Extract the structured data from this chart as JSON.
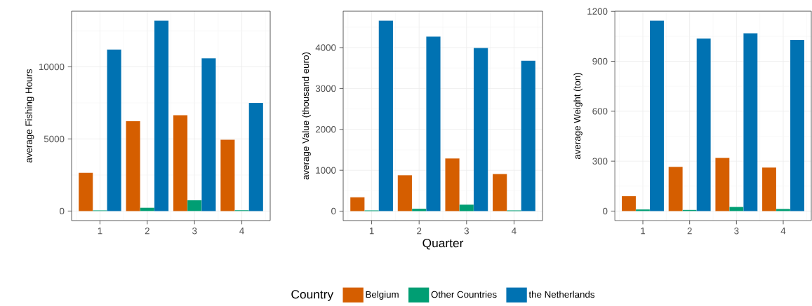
{
  "chart_data": [
    {
      "type": "bar",
      "categories": [
        "1",
        "2",
        "3",
        "4"
      ],
      "ylabel": "average Fishing Hours",
      "ylim": [
        -660,
        13860
      ],
      "yticks": [
        0,
        5000,
        10000
      ],
      "grid": true,
      "series": [
        {
          "color": "#d55e00",
          "values": [
            2650,
            6230,
            6650,
            4950
          ]
        },
        {
          "color": "#009e73",
          "values": [
            50,
            230,
            750,
            60
          ]
        },
        {
          "color": "#0072b2",
          "values": [
            11200,
            13200,
            10600,
            7500
          ]
        }
      ]
    },
    {
      "type": "bar",
      "categories": [
        "1",
        "2",
        "3",
        "4"
      ],
      "xlabel": "Quarter",
      "ylabel": "average Value (thousand euro)",
      "ylim": [
        -230,
        4890
      ],
      "yticks": [
        0,
        1000,
        2000,
        3000,
        4000
      ],
      "grid": true,
      "legend": "bottom",
      "legend_title": "Country",
      "series": [
        {
          "name": "Belgium",
          "color": "#d55e00",
          "values": [
            340,
            880,
            1290,
            910
          ]
        },
        {
          "name": "Other Countries",
          "color": "#009e73",
          "values": [
            20,
            60,
            160,
            20
          ]
        },
        {
          "name": "the Netherlands",
          "color": "#0072b2",
          "values": [
            4660,
            4270,
            3990,
            3680
          ]
        }
      ]
    },
    {
      "type": "bar",
      "categories": [
        "1",
        "2",
        "3",
        "4"
      ],
      "ylabel": "average Weight (ton)",
      "ylim": [
        -57,
        1201
      ],
      "yticks": [
        0,
        300,
        600,
        900,
        1200
      ],
      "grid": true,
      "series": [
        {
          "color": "#d55e00",
          "values": [
            90,
            266,
            320,
            262
          ]
        },
        {
          "color": "#009e73",
          "values": [
            10,
            7,
            25,
            13
          ]
        },
        {
          "color": "#0072b2",
          "values": [
            1144,
            1037,
            1068,
            1029
          ]
        }
      ]
    }
  ]
}
